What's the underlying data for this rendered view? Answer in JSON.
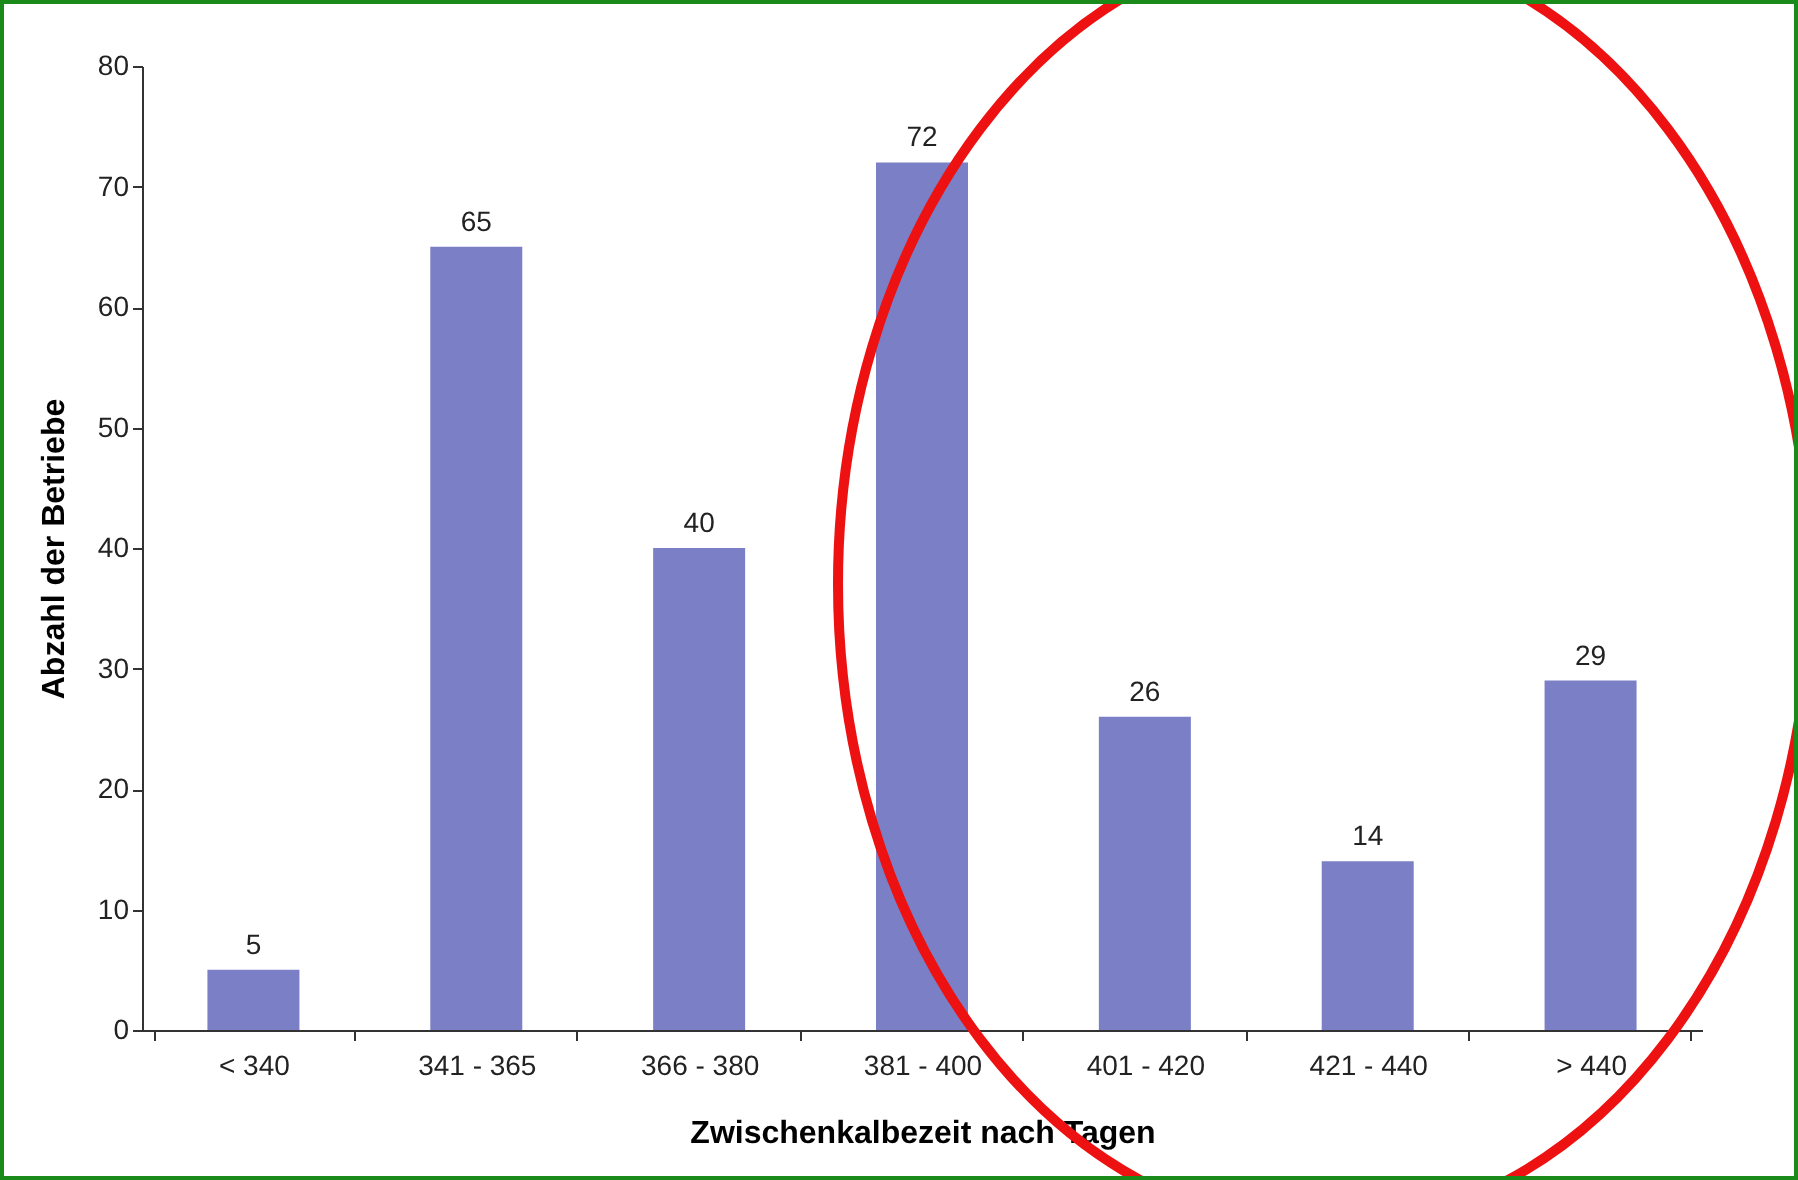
{
  "chart_data": {
    "type": "bar",
    "xlabel": "Zwischenkalbezeit nach Tagen",
    "ylabel": "Abzahl der Betriebe",
    "categories": [
      "< 340",
      "341 - 365",
      "366 - 380",
      "381 - 400",
      "401 - 420",
      "421 - 440",
      "> 440"
    ],
    "values": [
      5,
      65,
      40,
      72,
      26,
      14,
      29
    ],
    "color": "#7b7fc6",
    "ylim": [
      0,
      80
    ],
    "yticks": [
      0,
      10,
      20,
      30,
      40,
      50,
      60,
      70,
      80
    ],
    "grid": false,
    "data_labels": true
  }
}
